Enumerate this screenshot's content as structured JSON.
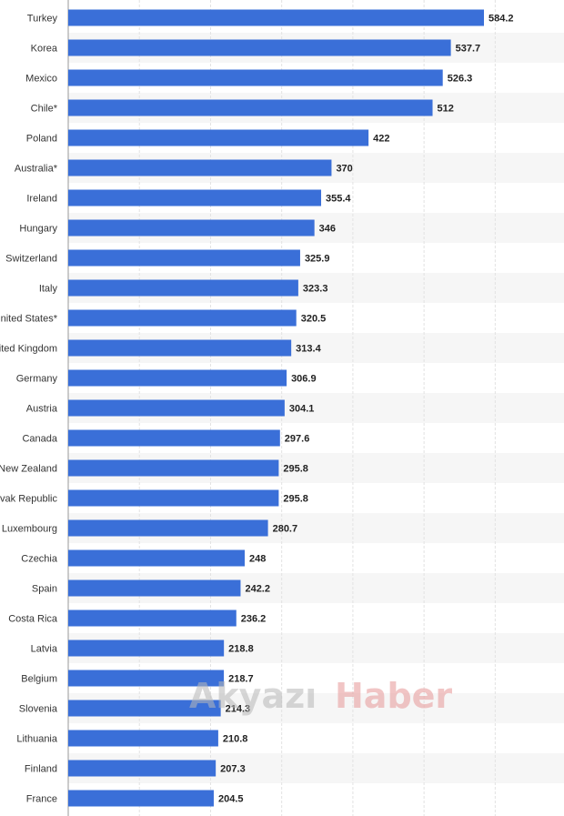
{
  "chart_data": {
    "type": "bar",
    "orientation": "horizontal",
    "categories": [
      "Turkey",
      "Korea",
      "Mexico",
      "Chile*",
      "Poland",
      "Australia*",
      "Ireland",
      "Hungary",
      "Switzerland",
      "Italy",
      "United States*",
      "United Kingdom",
      "Germany",
      "Austria",
      "Canada",
      "New Zealand",
      "Slovak Republic",
      "Luxembourg",
      "Czechia",
      "Spain",
      "Costa Rica",
      "Latvia",
      "Belgium",
      "Slovenia",
      "Lithuania",
      "Finland",
      "France"
    ],
    "values": [
      584.2,
      537.7,
      526.3,
      512,
      422,
      370,
      355.4,
      346,
      325.9,
      323.3,
      320.5,
      313.4,
      306.9,
      304.1,
      297.6,
      295.8,
      295.8,
      280.7,
      248,
      242.2,
      236.2,
      218.8,
      218.7,
      214.3,
      210.8,
      207.3,
      204.5
    ],
    "value_labels": [
      "584.2",
      "537.7",
      "526.3",
      "512",
      "422",
      "370",
      "355.4",
      "346",
      "325.9",
      "323.3",
      "320.5",
      "313.4",
      "306.9",
      "304.1",
      "297.6",
      "295.8",
      "295.8",
      "280.7",
      "248",
      "242.2",
      "236.2",
      "218.8",
      "218.7",
      "214.3",
      "210.8",
      "207.3",
      "204.5"
    ],
    "xlim": [
      0,
      700
    ],
    "grid": true,
    "bar_color": "#3a6fd8"
  },
  "watermark": {
    "part1": "Akyazı",
    "part2": "Haber"
  }
}
